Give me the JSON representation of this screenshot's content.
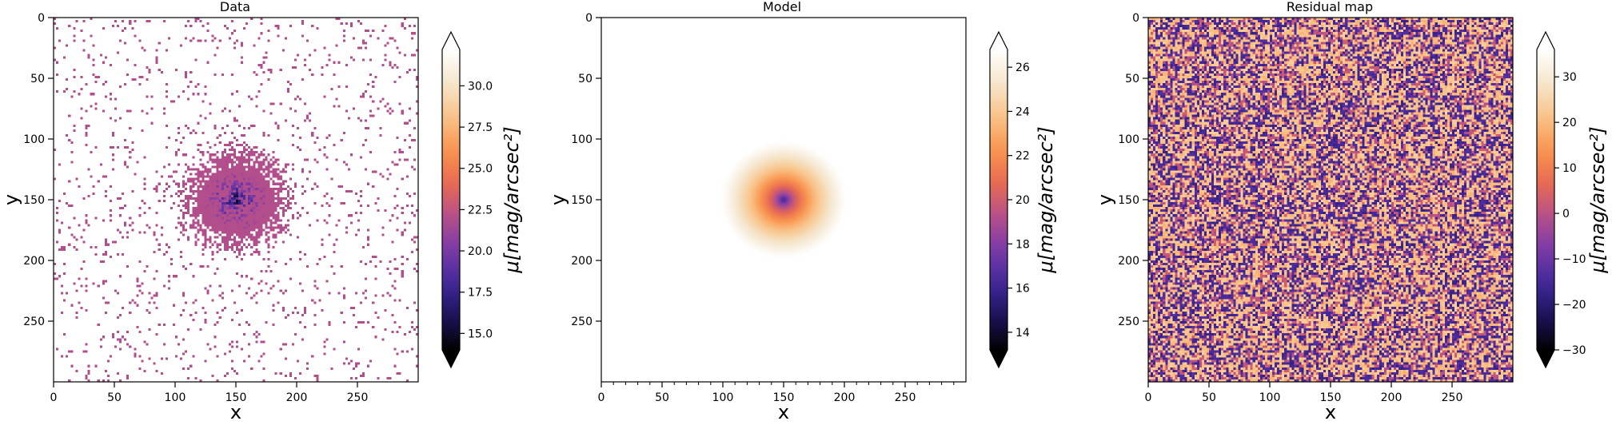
{
  "chart_data": [
    {
      "type": "heatmap",
      "title": "Data",
      "xlabel": "x",
      "ylabel": "y",
      "xlim": [
        0,
        300
      ],
      "ylim": [
        300,
        0
      ],
      "xticks": [
        "0",
        "50",
        "100",
        "150",
        "200",
        "250"
      ],
      "yticks": [
        "0",
        "50",
        "100",
        "150",
        "200",
        "250"
      ],
      "colormap": "cmr.torch",
      "colorbar": {
        "label": "μ[mag/arcsec²]",
        "range": [
          14.0,
          32.2
        ],
        "ticks": [
          "15.0",
          "17.5",
          "20.0",
          "22.5",
          "25.0",
          "27.5",
          "30.0"
        ],
        "extend": "both"
      },
      "description_values": {
        "center": [
          150,
          150
        ],
        "peak_value": 14.0
      }
    },
    {
      "type": "heatmap",
      "title": "Model",
      "xlabel": "x",
      "ylabel": "y",
      "xlim": [
        0,
        300
      ],
      "ylim": [
        300,
        0
      ],
      "xticks": [
        "0",
        "50",
        "100",
        "150",
        "200",
        "250"
      ],
      "yticks": [
        "0",
        "50",
        "100",
        "150",
        "200",
        "250"
      ],
      "colormap": "cmr.torch",
      "colorbar": {
        "label": "μ[mag/arcsec²]",
        "range": [
          13.2,
          26.8
        ],
        "ticks": [
          "14",
          "16",
          "18",
          "20",
          "22",
          "24",
          "26"
        ],
        "extend": "both"
      },
      "description_values": {
        "center": [
          150,
          150
        ],
        "peak_value": 13.2
      }
    },
    {
      "type": "heatmap",
      "title": "Residual map",
      "xlabel": "x",
      "ylabel": "y",
      "xlim": [
        0,
        300
      ],
      "ylim": [
        300,
        0
      ],
      "xticks": [
        "0",
        "50",
        "100",
        "150",
        "200",
        "250"
      ],
      "yticks": [
        "0",
        "50",
        "100",
        "150",
        "200",
        "250"
      ],
      "colormap": "cmr.torch",
      "colorbar": {
        "label": "μ[mag/arcsec²]",
        "range": [
          -30,
          36
        ],
        "ticks": [
          "−30",
          "−20",
          "−10",
          "0",
          "10",
          "20",
          "30"
        ],
        "extend": "both"
      }
    }
  ],
  "colors": {
    "torch_stops": [
      "#000000",
      "#1c1358",
      "#42289a",
      "#7a3aa8",
      "#b54f8a",
      "#e86a52",
      "#f99550",
      "#f9c48a",
      "#f5e6cc",
      "#ffffff"
    ]
  }
}
